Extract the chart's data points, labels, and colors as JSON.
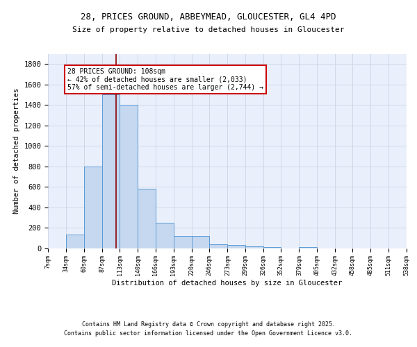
{
  "title1": "28, PRICES GROUND, ABBEYMEAD, GLOUCESTER, GL4 4PD",
  "title2": "Size of property relative to detached houses in Gloucester",
  "xlabel": "Distribution of detached houses by size in Gloucester",
  "ylabel": "Number of detached properties",
  "bin_edges": [
    7,
    34,
    60,
    87,
    113,
    140,
    166,
    193,
    220,
    246,
    273,
    299,
    326,
    352,
    379,
    405,
    432,
    458,
    485,
    511,
    538
  ],
  "bar_heights": [
    0,
    130,
    800,
    1500,
    1400,
    580,
    250,
    120,
    120,
    35,
    30,
    15,
    10,
    0,
    10,
    0,
    0,
    0,
    0,
    0
  ],
  "bar_color": "#c5d8f0",
  "bar_edge_color": "#5b9bd5",
  "grid_color": "#d0d8e8",
  "background_color": "#eaf0fb",
  "red_line_x": 108,
  "annotation_text": "28 PRICES GROUND: 108sqm\n← 42% of detached houses are smaller (2,033)\n57% of semi-detached houses are larger (2,744) →",
  "annotation_box_color": "#ffffff",
  "annotation_border_color": "#cc0000",
  "ylim": [
    0,
    1900
  ],
  "yticks": [
    0,
    200,
    400,
    600,
    800,
    1000,
    1200,
    1400,
    1600,
    1800
  ],
  "footer_line1": "Contains HM Land Registry data © Crown copyright and database right 2025.",
  "footer_line2": "Contains public sector information licensed under the Open Government Licence v3.0."
}
